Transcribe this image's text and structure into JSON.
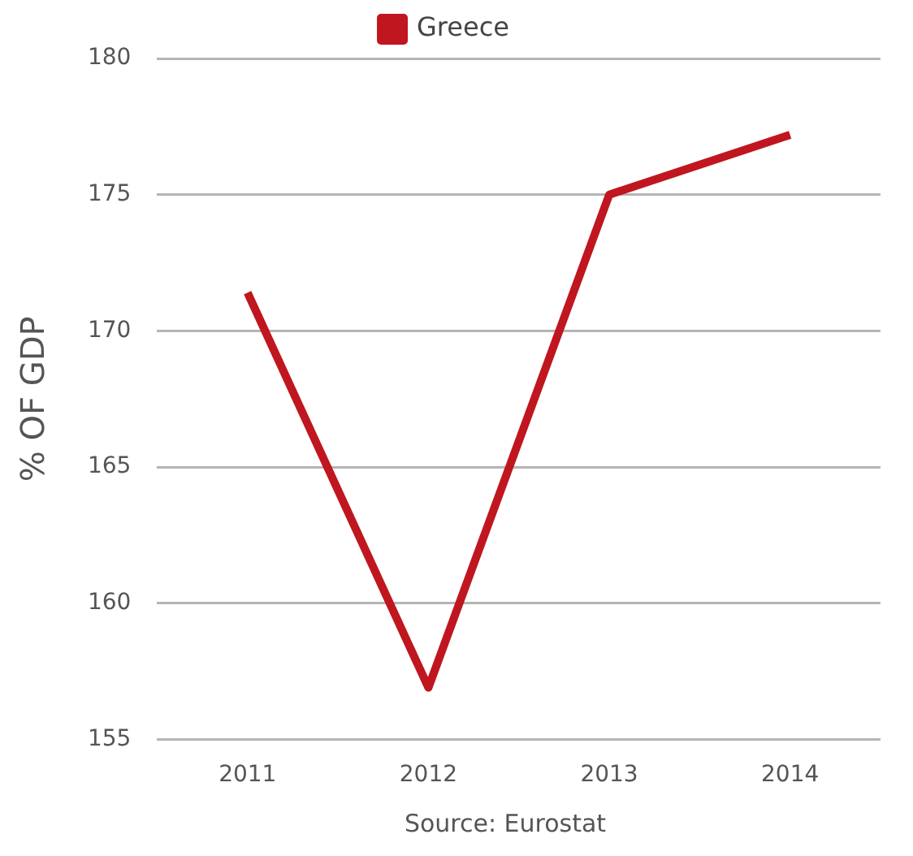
{
  "chart_data": {
    "type": "line",
    "ylabel": "% OF GDP",
    "categories": [
      "2011",
      "2012",
      "2013",
      "2014"
    ],
    "series": [
      {
        "name": "Greece",
        "color": "#c0161f",
        "values": [
          171.4,
          156.9,
          175.0,
          177.2
        ]
      }
    ],
    "ylim": [
      155,
      180
    ],
    "yticks": [
      155,
      160,
      165,
      170,
      175,
      180
    ],
    "grid": "y",
    "legend": "top",
    "marker": "none",
    "line_style": "solid",
    "annotations": [
      "Source: Eurostat"
    ]
  }
}
